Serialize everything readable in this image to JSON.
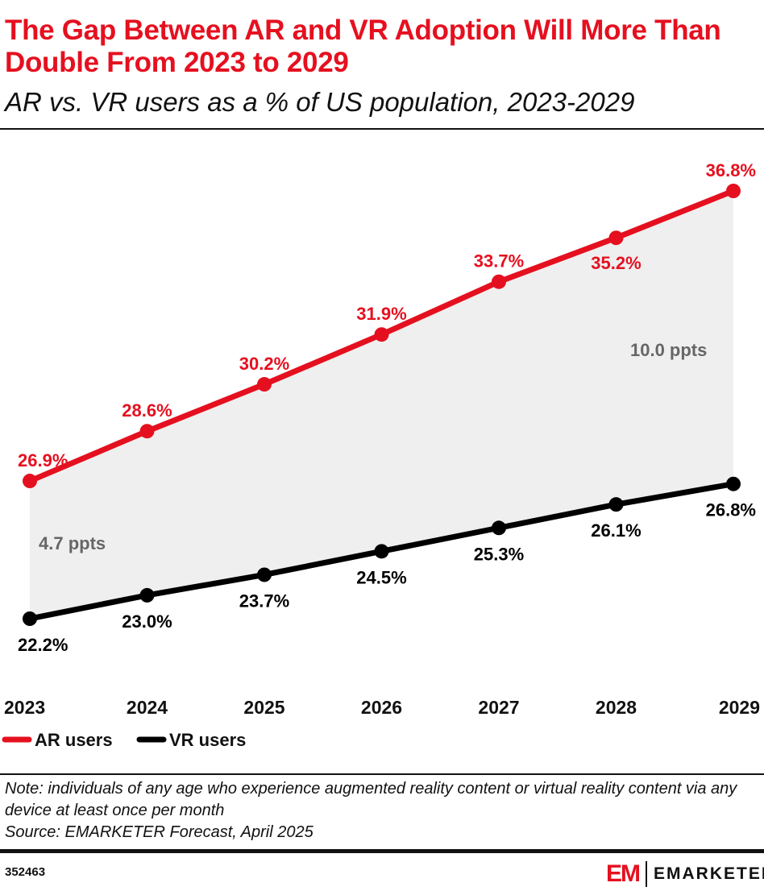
{
  "header": {
    "title": "The Gap Between AR and VR Adoption Will More Than Double From 2023 to 2029",
    "subtitle": "AR vs. VR users as a % of US population, 2023-2029"
  },
  "chart_data": {
    "type": "line",
    "categories": [
      "2023",
      "2024",
      "2025",
      "2026",
      "2027",
      "2028",
      "2029"
    ],
    "series": [
      {
        "name": "AR users",
        "color": "#e5101f",
        "values": [
          26.9,
          28.6,
          30.2,
          31.9,
          33.7,
          35.2,
          36.8
        ],
        "labels": [
          "26.9%",
          "28.6%",
          "30.2%",
          "31.9%",
          "33.7%",
          "35.2%",
          "36.8%"
        ]
      },
      {
        "name": "VR users",
        "color": "#000000",
        "values": [
          22.2,
          23.0,
          23.7,
          24.5,
          25.3,
          26.1,
          26.8
        ],
        "labels": [
          "22.2%",
          "23.0%",
          "23.7%",
          "24.5%",
          "25.3%",
          "26.1%",
          "26.8%"
        ]
      }
    ],
    "annotations": [
      "4.7 ppts",
      "10.0 ppts"
    ],
    "fill_between_color": "#efefef",
    "legend_position": "bottom-left",
    "grid": false
  },
  "footer": {
    "note": "Note: individuals of any age who experience augmented reality content or virtual reality content via any device at least once per month",
    "source": "Source: EMARKETER Forecast, April 2025",
    "id": "352463",
    "logo": "EMARKETER",
    "logo_mark": "EM"
  }
}
